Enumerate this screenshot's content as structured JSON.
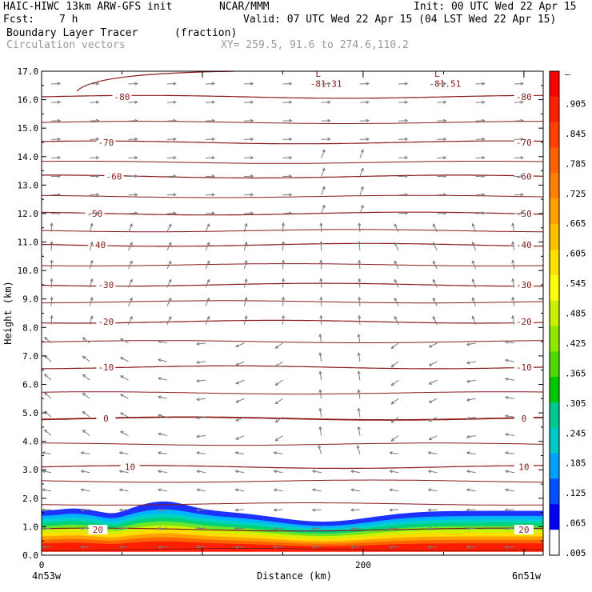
{
  "header": {
    "model": "HAIC-HIWC 13km ARW-GFS init",
    "org": "NCAR/MMM",
    "init": "Init: 00 UTC Wed 22 Apr 15",
    "fcst_label": "Fcst:",
    "fcst_value": "7 h",
    "valid": "Valid: 07 UTC Wed 22 Apr 15 (04 LST Wed 22 Apr 15)",
    "field1": "Boundary Layer Tracer",
    "field1_units": "(fraction)",
    "field2": "Circulation vectors",
    "xy": "XY= 259.5, 91.6 to 274.6,110.2"
  },
  "chart_data": {
    "type": "cross-section",
    "xlabel": "Distance (km)",
    "ylabel": "Height (km)",
    "xlim": [
      0,
      312
    ],
    "ylim": [
      0,
      17
    ],
    "x_ticks": [
      0,
      200
    ],
    "y_ticks": [
      "0.0",
      "1.0",
      "2.0",
      "3.0",
      "4.0",
      "5.0",
      "6.0",
      "7.0",
      "8.0",
      "9.0",
      "10.0",
      "11.0",
      "12.0",
      "13.0",
      "14.0",
      "15.0",
      "16.0",
      "17.0"
    ],
    "endpoints": {
      "left": "4n53w",
      "right": "6n51w"
    },
    "colorbar": {
      "labels": [
        "–",
        ".905",
        ".845",
        ".785",
        ".725",
        ".665",
        ".605",
        ".545",
        ".485",
        ".425",
        ".365",
        ".305",
        ".245",
        ".185",
        ".125",
        ".065",
        ".005"
      ],
      "colors": [
        "#ff0000",
        "#ff2000",
        "#ff4000",
        "#ff6000",
        "#ff8000",
        "#ffa000",
        "#ffc000",
        "#ffe000",
        "#ffff00",
        "#c8f000",
        "#90e800",
        "#50d800",
        "#00c800",
        "#00c890",
        "#00c8c8",
        "#00a0ff",
        "#0050ff",
        "#0000ff",
        "#ffffff"
      ]
    },
    "isotherm_color": "#8b1a1a",
    "isotherms": [
      {
        "label": "-80",
        "height": 16.1
      },
      {
        "label": "-70",
        "height": 14.5
      },
      {
        "label": "-60",
        "height": 13.3
      },
      {
        "label": "-50",
        "height": 12.0
      },
      {
        "label": "-40",
        "height": 10.9
      },
      {
        "label": "-30",
        "height": 9.5
      },
      {
        "label": "-20",
        "height": 8.2
      },
      {
        "label": "-10",
        "height": 6.6
      },
      {
        "label": "0",
        "height": 4.8
      },
      {
        "label": "10",
        "height": 3.1
      },
      {
        "label": "20",
        "height": 0.9
      }
    ],
    "extra_contours": [
      15.2,
      13.8,
      12.6,
      11.4,
      10.2,
      8.9,
      7.5,
      5.7,
      3.9,
      2.6,
      1.8,
      0.2
    ],
    "lows": [
      {
        "mark": "L",
        "value": "-81.31"
      },
      {
        "mark": "L",
        "value": "-81.51"
      }
    ],
    "vector_color": "#7a7a7a"
  }
}
